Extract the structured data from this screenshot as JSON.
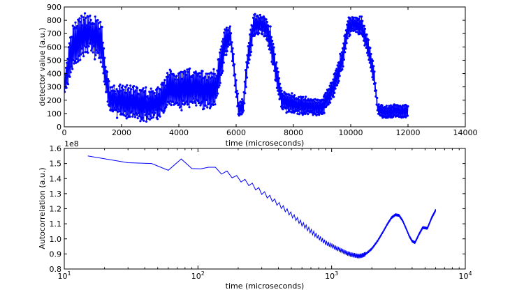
{
  "colors": {
    "series": "#0000ff",
    "axes": "#000000",
    "background": "#ffffff"
  },
  "chart_data": [
    {
      "type": "line",
      "marker": "dot",
      "title": "",
      "xlabel": "time (microseconds)",
      "ylabel": "detector value (a.u.)",
      "xlim": [
        0,
        14000
      ],
      "ylim": [
        0,
        900
      ],
      "xticks": [
        0,
        2000,
        4000,
        6000,
        8000,
        10000,
        12000,
        14000
      ],
      "xtick_labels": [
        "0",
        "2000",
        "4000",
        "6000",
        "8000",
        "10000",
        "12000",
        "14000"
      ],
      "yticks": [
        0,
        100,
        200,
        300,
        400,
        500,
        600,
        700,
        800,
        900
      ],
      "ytick_labels": [
        "0",
        "100",
        "200",
        "300",
        "400",
        "500",
        "600",
        "700",
        "800",
        "900"
      ],
      "grid": false,
      "sample_interval": 15,
      "series": [
        {
          "x_start": 0,
          "x_end": 12000,
          "envelope_x": [
            0,
            150,
            300,
            500,
            800,
            1000,
            1300,
            1450,
            1600,
            2000,
            2500,
            3000,
            3400,
            3700,
            4000,
            4500,
            5000,
            5300,
            5600,
            5800,
            6000,
            6100,
            6250,
            6400,
            6600,
            6800,
            7000,
            7200,
            7400,
            7600,
            8000,
            9000,
            9400,
            9700,
            9900,
            10100,
            10400,
            10600,
            10800,
            10950,
            11200,
            12000
          ],
          "envelope_mid": [
            300,
            450,
            600,
            650,
            700,
            680,
            640,
            350,
            200,
            190,
            180,
            160,
            200,
            300,
            280,
            300,
            270,
            300,
            620,
            700,
            280,
            130,
            150,
            500,
            750,
            780,
            760,
            650,
            400,
            200,
            170,
            140,
            300,
            500,
            750,
            770,
            750,
            600,
            400,
            130,
            110,
            120
          ],
          "swing": [
            60,
            140,
            160,
            170,
            150,
            150,
            150,
            110,
            100,
            120,
            120,
            120,
            120,
            140,
            140,
            140,
            140,
            140,
            120,
            80,
            80,
            60,
            60,
            110,
            90,
            70,
            80,
            100,
            100,
            80,
            70,
            60,
            80,
            100,
            70,
            60,
            70,
            80,
            80,
            40,
            50,
            50
          ]
        }
      ]
    },
    {
      "type": "line",
      "title": "",
      "xlabel": "time (microseconds)",
      "ylabel": "Autocorrelation (a.u.)",
      "xscale": "log",
      "xlim": [
        10,
        10000
      ],
      "ylim": [
        0.8,
        1.6
      ],
      "y_multiplier_label": "1e8",
      "xticks": [
        10,
        100,
        1000,
        10000
      ],
      "xtick_bases": [
        "10",
        "10",
        "10",
        "10"
      ],
      "xtick_exps": [
        "1",
        "2",
        "3",
        "4"
      ],
      "yticks": [
        0.8,
        0.9,
        1.0,
        1.1,
        1.2,
        1.3,
        1.4,
        1.5,
        1.6
      ],
      "ytick_labels": [
        "0.8",
        "0.9",
        "1.0",
        "1.1",
        "1.2",
        "1.3",
        "1.4",
        "1.5",
        "1.6"
      ],
      "grid": false,
      "series": [
        {
          "x": [
            15,
            30,
            45,
            60,
            75,
            90,
            105,
            120,
            135,
            150,
            165,
            180,
            195,
            210,
            225,
            240,
            255,
            270,
            285,
            300,
            315,
            330,
            345,
            360,
            375,
            390,
            405,
            420,
            435,
            450,
            465,
            480,
            495,
            510,
            525,
            540,
            555,
            570,
            585,
            600,
            615,
            630,
            645,
            660,
            675,
            690,
            705,
            720,
            735,
            750,
            765,
            780,
            795,
            810,
            825,
            840,
            855,
            870,
            885,
            900,
            915,
            930,
            945,
            960,
            975,
            990,
            1005,
            1020,
            1035,
            1050,
            1065,
            1080,
            1095,
            1110,
            1125,
            1140,
            1155,
            1170,
            1185,
            1200,
            1215,
            1230,
            1245,
            1260,
            1275,
            1290,
            1305,
            1320,
            1335,
            1350,
            1365,
            1380,
            1395,
            1410,
            1425,
            1440,
            1455,
            1470,
            1485,
            1500,
            1515,
            1530,
            1545,
            1560,
            1575,
            1590,
            1605,
            1620,
            1635,
            1650,
            1665,
            1680,
            1695,
            1710,
            1725,
            1740,
            1755,
            1770,
            1785,
            1800,
            1815,
            1830,
            1845,
            1860,
            1875,
            1890,
            1905,
            1920,
            1935,
            1950,
            1965,
            1980,
            1995,
            2010,
            2025,
            2040,
            2055,
            2070,
            2085,
            2100,
            2115,
            2130,
            2145,
            2160,
            2175,
            2190,
            2205,
            2220,
            2235,
            2250,
            2265,
            2280,
            2295,
            2310,
            2325,
            2340,
            2355,
            2370,
            2385,
            2400,
            2415,
            2430,
            2445,
            2460,
            2475,
            2490,
            2505,
            2520,
            2535,
            2550,
            2565,
            2580,
            2595,
            2610,
            2625,
            2640,
            2655,
            2670,
            2685,
            2700,
            2715,
            2730,
            2745,
            2760,
            2775,
            2790,
            2805,
            2820,
            2835,
            2850,
            2865,
            2880,
            2895,
            2910,
            2925,
            2940,
            2955,
            2970,
            2985,
            3000,
            3015,
            3030,
            3045,
            3060,
            3075,
            3090,
            3105,
            3120,
            3135,
            3150,
            3165,
            3180,
            3195,
            3210,
            3225,
            3240,
            3255,
            3270,
            3285,
            3300,
            3315,
            3330,
            3345,
            3360,
            3375,
            3390,
            3405,
            3420,
            3435,
            3450,
            3465,
            3480,
            3495,
            3510,
            3525,
            3540,
            3555,
            3570,
            3585,
            3600,
            3615,
            3630,
            3645,
            3660,
            3675,
            3690,
            3705,
            3720,
            3735,
            3750,
            3765,
            3780,
            3795,
            3810,
            3825,
            3840,
            3855,
            3870,
            3885,
            3900,
            3915,
            3930,
            3945,
            3960,
            3975,
            3990,
            4005,
            4020,
            4035,
            4050,
            4065,
            4080,
            4095,
            4110,
            4125,
            4140,
            4155,
            4170,
            4185,
            4200,
            4215,
            4230,
            4245,
            4260,
            4275,
            4290,
            4305,
            4320,
            4335,
            4350,
            4365,
            4380,
            4395,
            4410,
            4425,
            4440,
            4455,
            4470,
            4485,
            4500,
            4515,
            4530,
            4545,
            4560,
            4575,
            4590,
            4605,
            4620,
            4635,
            4650,
            4665,
            4680,
            4695,
            4710,
            4725,
            4740,
            4755,
            4770,
            4785,
            4800,
            4815,
            4830,
            4845,
            4860,
            4875,
            4890,
            4905,
            4920,
            4935,
            4950,
            4965,
            4980,
            4995,
            5010,
            5025,
            5040,
            5055,
            5070,
            5085,
            5100,
            5115,
            5130,
            5145,
            5160,
            5175,
            5190,
            5205,
            5220,
            5235,
            5250,
            5265,
            5280,
            5295,
            5310,
            5325,
            5340,
            5355,
            5370,
            5385,
            5400,
            5415,
            5430,
            5445,
            5460,
            5475,
            5490,
            5505,
            5520,
            5535,
            5550,
            5565,
            5580,
            5595,
            5610,
            5625,
            5640,
            5655,
            5670,
            5685,
            5700,
            5715,
            5730,
            5745,
            5760,
            5775,
            5790,
            5805,
            5820,
            5835,
            5850,
            5865,
            5880,
            5895,
            5910,
            5925,
            5940,
            5955,
            5970,
            5985,
            6000
          ],
          "y_anchor_x": [
            15,
            30,
            45,
            60,
            75,
            95,
            105,
            120,
            140,
            160,
            180,
            200,
            250,
            300,
            400,
            500,
            600,
            700,
            800,
            900,
            1000,
            1100,
            1200,
            1300,
            1400,
            1500,
            1600,
            1700,
            1800,
            2000,
            2200,
            2400,
            2600,
            2800,
            3000,
            3200,
            3400,
            3600,
            3800,
            4000,
            4200,
            4500,
            4800,
            5200,
            5600,
            6000
          ],
          "y_anchor_y": [
            1.535,
            1.52,
            1.485,
            1.47,
            1.515,
            1.47,
            1.45,
            1.49,
            1.45,
            1.44,
            1.42,
            1.4,
            1.36,
            1.31,
            1.23,
            1.16,
            1.1,
            1.05,
            1.01,
            0.975,
            0.955,
            0.935,
            0.92,
            0.905,
            0.895,
            0.89,
            0.885,
            0.89,
            0.9,
            0.935,
            0.985,
            1.04,
            1.095,
            1.14,
            1.16,
            1.155,
            1.12,
            1.07,
            1.02,
            0.985,
            0.975,
            1.03,
            1.075,
            1.07,
            1.14,
            1.19
          ],
          "ripple_amplitude": 0.015
        }
      ]
    }
  ]
}
